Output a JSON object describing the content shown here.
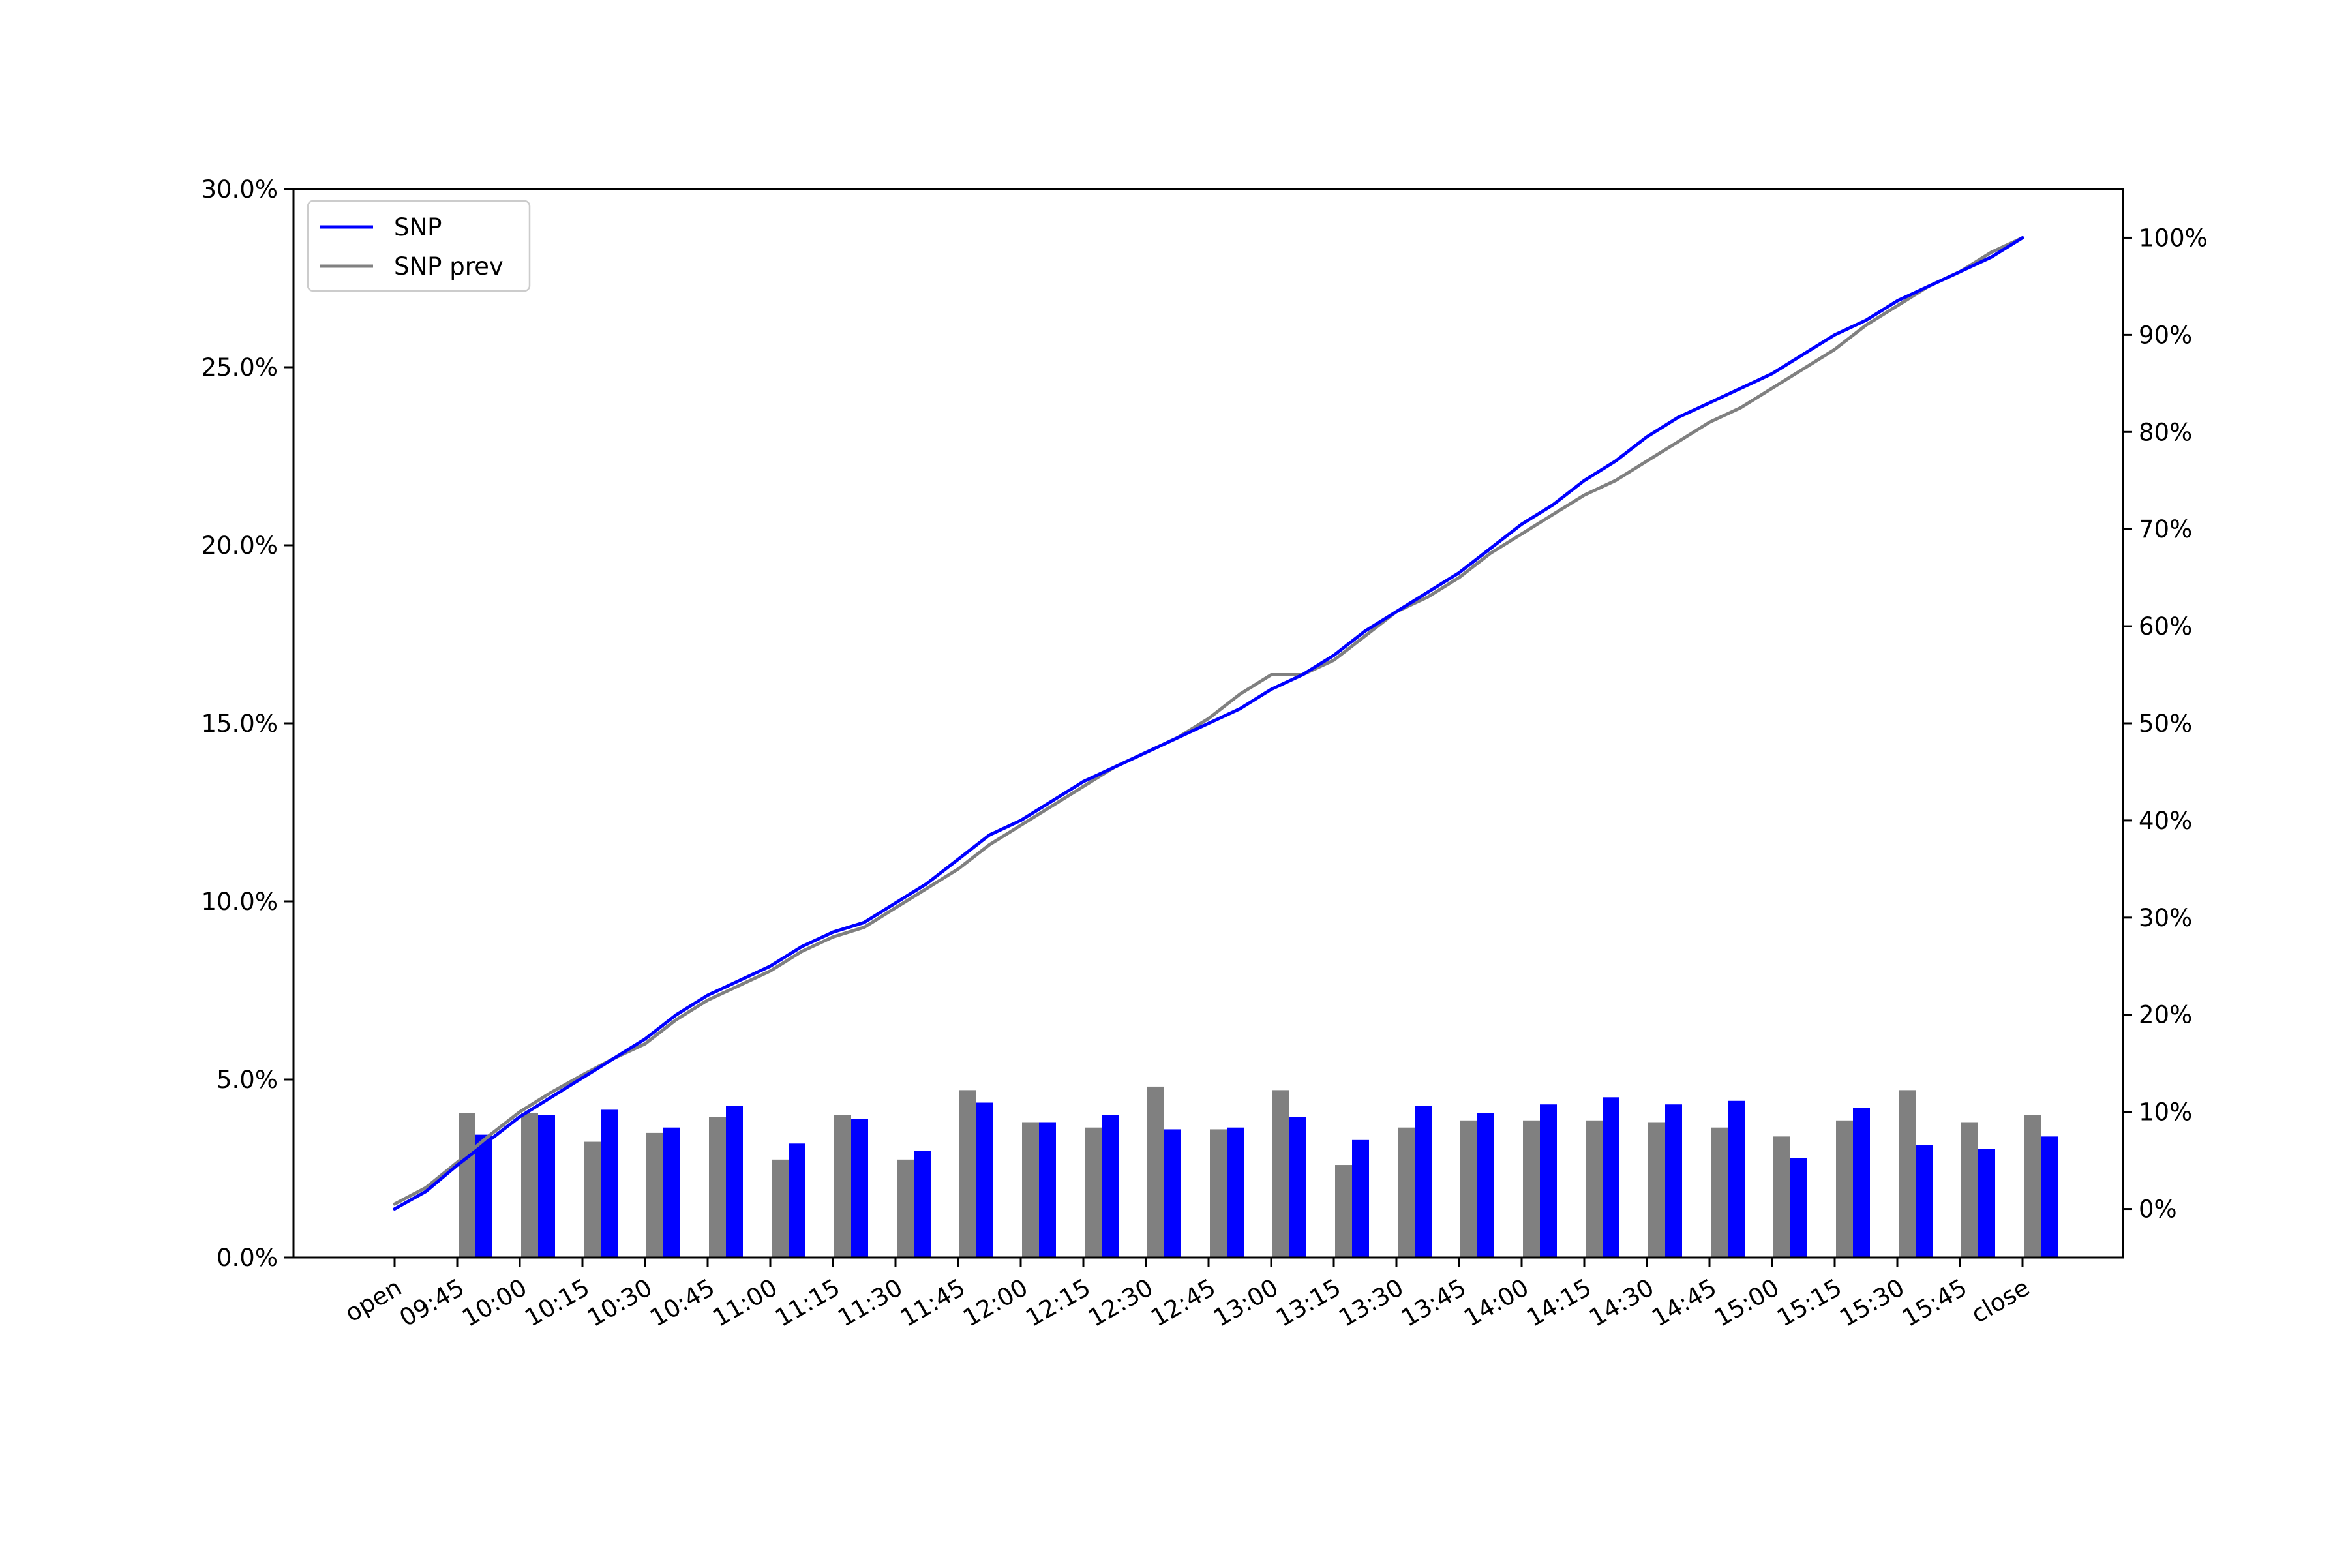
{
  "chart_data": {
    "type": "bar",
    "title": "",
    "xlabel": "",
    "ylabel": "",
    "categories": [
      "open",
      "09:45",
      "10:00",
      "10:15",
      "10:30",
      "10:45",
      "11:00",
      "11:15",
      "11:30",
      "11:45",
      "12:00",
      "12:15",
      "12:30",
      "12:45",
      "13:00",
      "13:15",
      "13:30",
      "13:45",
      "14:00",
      "14:15",
      "14:30",
      "14:45",
      "15:00",
      "15:15",
      "15:30",
      "15:45",
      "close"
    ],
    "y_left": {
      "ylim": [
        0,
        30
      ],
      "ticks": [
        0,
        5,
        10,
        15,
        20,
        25,
        30
      ],
      "tick_labels": [
        "0.0%",
        "5.0%",
        "10.0%",
        "15.0%",
        "20.0%",
        "25.0%",
        "30.0%"
      ]
    },
    "y_right": {
      "ylim": [
        -5,
        105
      ],
      "ticks": [
        0,
        10,
        20,
        30,
        40,
        50,
        60,
        70,
        80,
        90,
        100
      ],
      "tick_labels": [
        "0%",
        "10%",
        "20%",
        "30%",
        "40%",
        "50%",
        "60%",
        "70%",
        "80%",
        "90%",
        "100%"
      ]
    },
    "grid": false,
    "legend": {
      "placement": "upper-left",
      "entries": [
        "SNP",
        "SNP prev"
      ]
    },
    "bar_series": [
      {
        "name": "SNP prev",
        "color": "#808080",
        "axis": "left",
        "values": [
          null,
          4.05,
          4.05,
          3.25,
          3.5,
          3.95,
          2.75,
          4.0,
          2.75,
          4.7,
          3.8,
          3.65,
          4.8,
          3.6,
          4.7,
          2.6,
          3.65,
          3.85,
          3.85,
          3.85,
          3.8,
          3.65,
          3.4,
          3.85,
          4.7,
          3.8,
          4.0
        ]
      },
      {
        "name": "SNP",
        "color": "#0000ff",
        "axis": "left",
        "values": [
          null,
          3.45,
          4.0,
          4.15,
          3.65,
          4.25,
          3.2,
          3.9,
          3.0,
          4.35,
          3.8,
          4.0,
          3.6,
          3.65,
          3.95,
          3.3,
          4.25,
          4.05,
          4.3,
          4.5,
          4.3,
          4.4,
          2.8,
          4.2,
          3.15,
          3.05,
          3.4
        ]
      }
    ],
    "line_series": [
      {
        "name": "SNP",
        "color": "#0000ff",
        "axis": "right",
        "x": [
          0,
          0.5,
          1,
          1.5,
          2,
          2.5,
          3,
          3.5,
          4,
          4.5,
          5,
          5.5,
          6,
          6.5,
          7,
          7.5,
          8,
          8.5,
          9,
          9.5,
          10,
          10.5,
          11,
          11.5,
          12,
          12.5,
          13,
          13.5,
          14,
          14.5,
          15,
          15.5,
          16,
          16.5,
          17,
          17.5,
          18,
          18.5,
          19,
          19.5,
          20,
          20.5,
          21,
          21.5,
          22,
          22.5,
          23,
          23.5,
          24,
          24.5,
          25,
          25.5,
          26
        ],
        "y": [
          0,
          1.8,
          4.5,
          7.0,
          9.5,
          11.5,
          13.5,
          15.5,
          17.5,
          20.0,
          22.0,
          23.5,
          25.0,
          27.0,
          28.5,
          29.5,
          31.5,
          33.5,
          36.0,
          38.5,
          40.0,
          42.0,
          44.0,
          45.5,
          47.0,
          48.5,
          50.0,
          51.5,
          53.5,
          55.0,
          57.0,
          59.5,
          61.5,
          63.5,
          65.5,
          68.0,
          70.5,
          72.5,
          75.0,
          77.0,
          79.5,
          81.5,
          83.0,
          84.5,
          86.0,
          88.0,
          90.0,
          91.5,
          93.5,
          95.0,
          96.5,
          98.0,
          100.0
        ]
      },
      {
        "name": "SNP prev",
        "color": "#808080",
        "axis": "right",
        "x": [
          0,
          0.5,
          1,
          1.5,
          2,
          2.5,
          3,
          3.5,
          4,
          4.5,
          5,
          5.5,
          6,
          6.5,
          7,
          7.5,
          8,
          8.5,
          9,
          9.5,
          10,
          10.5,
          11,
          11.5,
          12,
          12.5,
          13,
          13.5,
          14,
          14.5,
          15,
          15.5,
          16,
          16.5,
          17,
          17.5,
          18,
          18.5,
          19,
          19.5,
          20,
          20.5,
          21,
          21.5,
          22,
          22.5,
          23,
          23.5,
          24,
          24.5,
          25,
          25.5,
          26
        ],
        "y": [
          0.5,
          2.2,
          4.8,
          7.5,
          10.0,
          12.0,
          13.8,
          15.5,
          17.0,
          19.5,
          21.5,
          23.0,
          24.5,
          26.5,
          28.0,
          29.0,
          31.0,
          33.0,
          35.0,
          37.5,
          39.5,
          41.5,
          43.5,
          45.5,
          47.0,
          48.5,
          50.5,
          53.0,
          55.0,
          55.0,
          56.5,
          59.0,
          61.5,
          63.0,
          65.0,
          67.5,
          69.5,
          71.5,
          73.5,
          75.0,
          77.0,
          79.0,
          81.0,
          82.5,
          84.5,
          86.5,
          88.5,
          91.0,
          93.0,
          95.0,
          96.5,
          98.5,
          100.0
        ]
      }
    ]
  }
}
